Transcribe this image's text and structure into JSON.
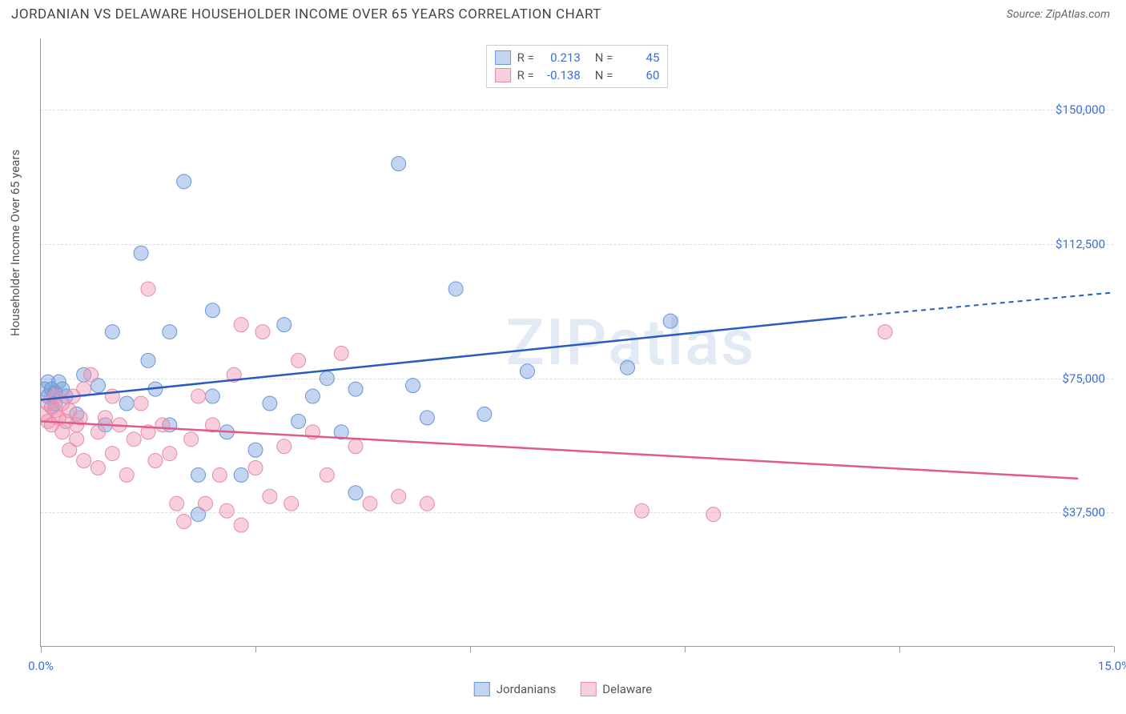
{
  "title": "JORDANIAN VS DELAWARE HOUSEHOLDER INCOME OVER 65 YEARS CORRELATION CHART",
  "source": "Source: ZipAtlas.com",
  "ylabel": "Householder Income Over 65 years",
  "watermark": "ZIPatlas",
  "axes": {
    "xlim": [
      0,
      15
    ],
    "ylim": [
      0,
      170000
    ],
    "xticks": [
      0,
      3,
      6,
      9,
      12,
      15
    ],
    "xlabels_shown": {
      "0": "0.0%",
      "15": "15.0%"
    },
    "yticks": [
      37500,
      75000,
      112500,
      150000
    ],
    "ylabels": [
      "$37,500",
      "$75,000",
      "$112,500",
      "$150,000"
    ],
    "grid_color": "#dddddd",
    "axis_color": "#999999",
    "tick_label_color": "#3b6fd6"
  },
  "series": [
    {
      "name": "Jordanians",
      "fill": "rgba(120,160,220,0.45)",
      "stroke": "#6a96d6",
      "line_color": "#2a5bbf",
      "r": 0.213,
      "n": 45,
      "marker_size": 9,
      "trend": {
        "x1": 0,
        "y1": 69000,
        "x2": 11.2,
        "y2": 92000,
        "dash_x2": 15,
        "dash_y2": 99000
      },
      "points": [
        [
          0.05,
          72000
        ],
        [
          0.1,
          70000
        ],
        [
          0.1,
          74000
        ],
        [
          0.15,
          67000
        ],
        [
          0.15,
          72000
        ],
        [
          0.2,
          71000
        ],
        [
          0.2,
          68000
        ],
        [
          0.25,
          74000
        ],
        [
          0.3,
          72000
        ],
        [
          0.6,
          76000
        ],
        [
          0.8,
          73000
        ],
        [
          1.0,
          88000
        ],
        [
          1.2,
          68000
        ],
        [
          1.4,
          110000
        ],
        [
          1.6,
          72000
        ],
        [
          1.8,
          62000
        ],
        [
          1.8,
          88000
        ],
        [
          2.0,
          130000
        ],
        [
          2.2,
          37000
        ],
        [
          2.2,
          48000
        ],
        [
          2.4,
          70000
        ],
        [
          2.4,
          94000
        ],
        [
          2.6,
          60000
        ],
        [
          2.8,
          48000
        ],
        [
          3.0,
          55000
        ],
        [
          3.2,
          68000
        ],
        [
          3.4,
          90000
        ],
        [
          3.6,
          63000
        ],
        [
          3.8,
          70000
        ],
        [
          4.0,
          75000
        ],
        [
          4.2,
          60000
        ],
        [
          4.4,
          72000
        ],
        [
          4.4,
          43000
        ],
        [
          5.0,
          135000
        ],
        [
          5.2,
          73000
        ],
        [
          5.4,
          64000
        ],
        [
          5.8,
          100000
        ],
        [
          6.2,
          65000
        ],
        [
          6.8,
          77000
        ],
        [
          8.2,
          78000
        ],
        [
          8.8,
          91000
        ],
        [
          0.5,
          65000
        ],
        [
          0.9,
          62000
        ],
        [
          1.5,
          80000
        ],
        [
          0.35,
          70000
        ]
      ]
    },
    {
      "name": "Delaware",
      "fill": "rgba(240,150,180,0.45)",
      "stroke": "#e88aa8",
      "line_color": "#e05a8a",
      "r": -0.138,
      "n": 60,
      "marker_size": 9,
      "trend": {
        "x1": 0,
        "y1": 63000,
        "x2": 14.5,
        "y2": 47000
      },
      "points": [
        [
          0.05,
          65000
        ],
        [
          0.1,
          63000
        ],
        [
          0.1,
          68000
        ],
        [
          0.15,
          62000
        ],
        [
          0.2,
          66000
        ],
        [
          0.2,
          70000
        ],
        [
          0.25,
          64000
        ],
        [
          0.3,
          60000
        ],
        [
          0.3,
          68000
        ],
        [
          0.35,
          63000
        ],
        [
          0.4,
          55000
        ],
        [
          0.4,
          66000
        ],
        [
          0.5,
          62000
        ],
        [
          0.5,
          58000
        ],
        [
          0.6,
          72000
        ],
        [
          0.6,
          52000
        ],
        [
          0.7,
          76000
        ],
        [
          0.8,
          60000
        ],
        [
          0.8,
          50000
        ],
        [
          0.9,
          64000
        ],
        [
          1.0,
          70000
        ],
        [
          1.0,
          54000
        ],
        [
          1.1,
          62000
        ],
        [
          1.2,
          48000
        ],
        [
          1.3,
          58000
        ],
        [
          1.4,
          68000
        ],
        [
          1.5,
          60000
        ],
        [
          1.5,
          100000
        ],
        [
          1.6,
          52000
        ],
        [
          1.7,
          62000
        ],
        [
          1.8,
          54000
        ],
        [
          1.9,
          40000
        ],
        [
          2.0,
          35000
        ],
        [
          2.1,
          58000
        ],
        [
          2.2,
          70000
        ],
        [
          2.3,
          40000
        ],
        [
          2.4,
          62000
        ],
        [
          2.5,
          48000
        ],
        [
          2.6,
          38000
        ],
        [
          2.7,
          76000
        ],
        [
          2.8,
          90000
        ],
        [
          2.8,
          34000
        ],
        [
          3.0,
          50000
        ],
        [
          3.1,
          88000
        ],
        [
          3.2,
          42000
        ],
        [
          3.4,
          56000
        ],
        [
          3.5,
          40000
        ],
        [
          3.6,
          80000
        ],
        [
          3.8,
          60000
        ],
        [
          4.0,
          48000
        ],
        [
          4.2,
          82000
        ],
        [
          4.4,
          56000
        ],
        [
          4.6,
          40000
        ],
        [
          5.0,
          42000
        ],
        [
          5.4,
          40000
        ],
        [
          8.4,
          38000
        ],
        [
          9.4,
          37000
        ],
        [
          11.8,
          88000
        ],
        [
          0.45,
          70000
        ],
        [
          0.55,
          64000
        ]
      ]
    }
  ],
  "legend_bottom": [
    "Jordanians",
    "Delaware"
  ]
}
